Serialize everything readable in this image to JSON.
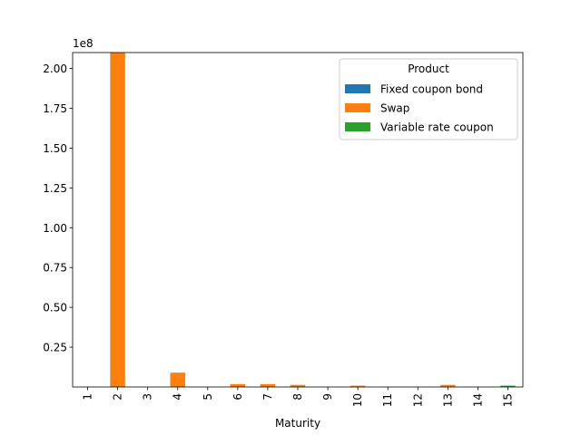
{
  "chart_data": {
    "type": "bar",
    "stacked": true,
    "categories": [
      "1",
      "2",
      "3",
      "4",
      "5",
      "6",
      "7",
      "8",
      "9",
      "10",
      "11",
      "12",
      "13",
      "14",
      "15"
    ],
    "series": [
      {
        "name": "Fixed coupon bond",
        "color": "#1f77b4",
        "values": [
          50000,
          0,
          0,
          0,
          0,
          0,
          0,
          0,
          0,
          0,
          0,
          0,
          0,
          0,
          0
        ]
      },
      {
        "name": "Swap",
        "color": "#ff7f0e",
        "values": [
          0,
          210000000,
          0,
          9000000,
          0,
          1800000,
          1800000,
          1300000,
          0,
          800000,
          0,
          0,
          1300000,
          0,
          0
        ]
      },
      {
        "name": "Variable rate coupon",
        "color": "#2ca02c",
        "values": [
          0,
          0,
          0,
          0,
          0,
          0,
          0,
          0,
          0,
          0,
          0,
          0,
          0,
          0,
          800000
        ]
      }
    ],
    "xlabel": "Maturity",
    "ylabel": "",
    "ylim": [
      0,
      210000000
    ],
    "yticks": [
      0.25,
      0.5,
      0.75,
      1.0,
      1.25,
      1.5,
      1.75,
      2.0
    ],
    "ytick_labels": [
      "0.25",
      "0.50",
      "0.75",
      "1.00",
      "1.25",
      "1.50",
      "1.75",
      "2.00"
    ],
    "y_multiplier": 100000000,
    "offset_text": "1e8",
    "legend": {
      "title": "Product",
      "placement": "top-right"
    },
    "grid": false
  }
}
